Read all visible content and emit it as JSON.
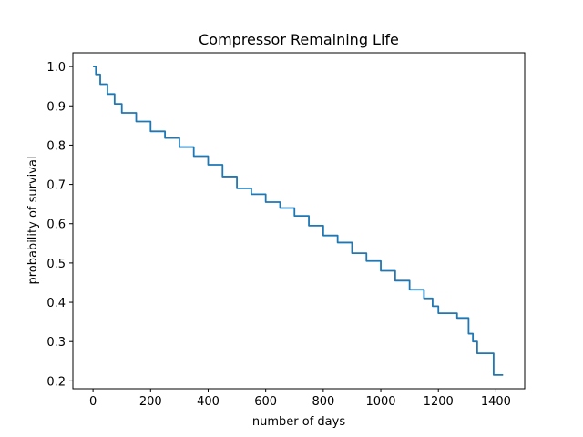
{
  "chart_data": {
    "type": "line",
    "title": "Compressor Remaining Life",
    "xlabel": "number of days",
    "ylabel": "probability of survival",
    "xlim": [
      -70,
      1500
    ],
    "ylim": [
      0.18,
      1.035
    ],
    "xticks": [
      0,
      200,
      400,
      600,
      800,
      1000,
      1200,
      1400
    ],
    "xtick_labels": [
      "0",
      "200",
      "400",
      "600",
      "800",
      "1000",
      "1200",
      "1400"
    ],
    "yticks": [
      0.2,
      0.3,
      0.4,
      0.5,
      0.6,
      0.7,
      0.8,
      0.9,
      1.0
    ],
    "ytick_labels": [
      "0.2",
      "0.3",
      "0.4",
      "0.5",
      "0.6",
      "0.7",
      "0.8",
      "0.9",
      "1.0"
    ],
    "grid": false,
    "legend": null,
    "series": [
      {
        "name": "survival",
        "color": "#1f77b4",
        "drawstyle": "steps-post",
        "x": [
          0,
          10,
          25,
          50,
          75,
          100,
          150,
          200,
          250,
          300,
          350,
          400,
          450,
          500,
          550,
          600,
          650,
          700,
          750,
          800,
          850,
          900,
          950,
          1000,
          1050,
          1100,
          1150,
          1180,
          1200,
          1265,
          1305,
          1320,
          1335,
          1340,
          1392,
          1425
        ],
        "values": [
          1.0,
          0.98,
          0.955,
          0.93,
          0.905,
          0.882,
          0.86,
          0.835,
          0.818,
          0.795,
          0.772,
          0.75,
          0.72,
          0.69,
          0.675,
          0.655,
          0.64,
          0.62,
          0.595,
          0.57,
          0.552,
          0.525,
          0.505,
          0.48,
          0.455,
          0.432,
          0.41,
          0.39,
          0.372,
          0.36,
          0.32,
          0.3,
          0.27,
          0.27,
          0.215,
          0.215
        ]
      }
    ]
  }
}
